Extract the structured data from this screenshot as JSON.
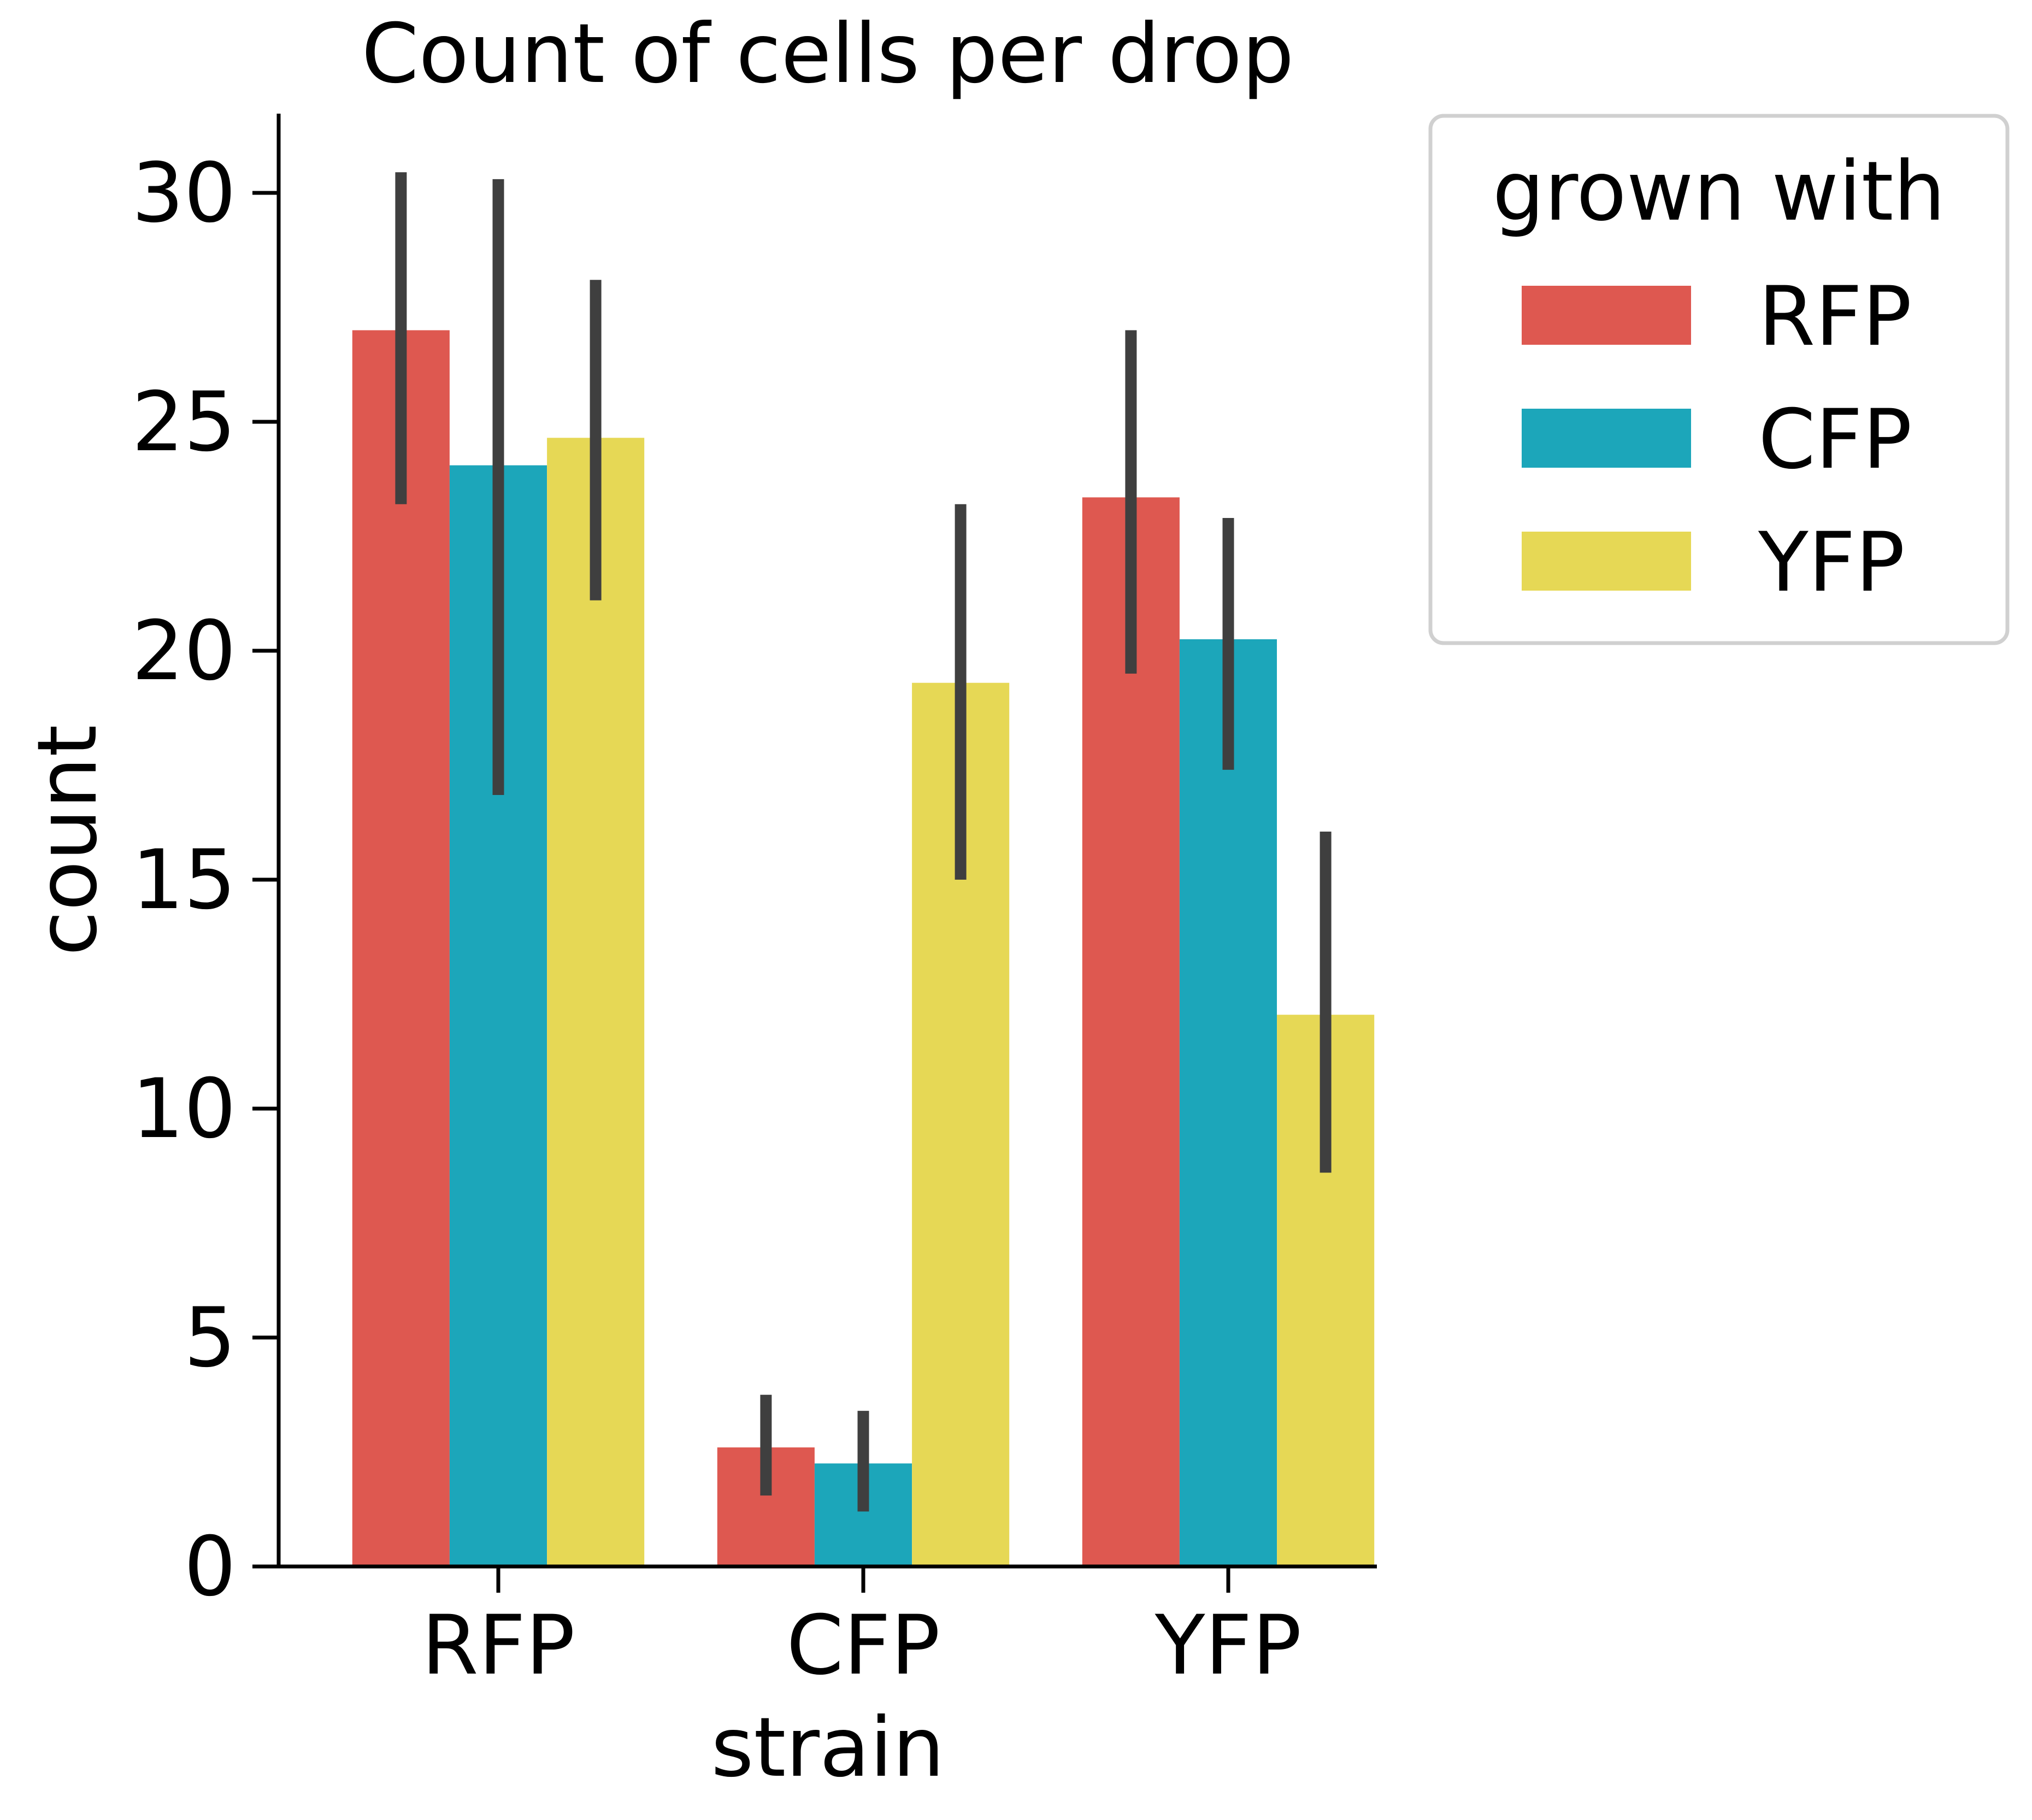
{
  "chart_data": {
    "type": "bar",
    "title": "Count of cells per drop",
    "xlabel": "strain",
    "ylabel": "count",
    "categories": [
      "RFP",
      "CFP",
      "YFP"
    ],
    "ylim": [
      0,
      31.8
    ],
    "yticks": [
      0,
      5,
      10,
      15,
      20,
      25,
      30
    ],
    "grid": false,
    "legend": {
      "title": "grown with",
      "placement": "outside-top-right"
    },
    "series": [
      {
        "name": "RFP",
        "color": "#de5850",
        "values": [
          27.0,
          2.6,
          23.35
        ],
        "ci_low": [
          23.2,
          1.55,
          19.5
        ],
        "ci_high": [
          30.45,
          3.75,
          27.0
        ]
      },
      {
        "name": "CFP",
        "color": "#1ca6ba",
        "values": [
          24.05,
          2.25,
          20.25
        ],
        "ci_low": [
          16.85,
          1.2,
          17.4
        ],
        "ci_high": [
          30.3,
          3.4,
          22.9
        ]
      },
      {
        "name": "YFP",
        "color": "#e6d855",
        "values": [
          24.65,
          19.3,
          12.05
        ],
        "ci_low": [
          21.1,
          15.0,
          8.6
        ],
        "ci_high": [
          28.1,
          23.2,
          16.05
        ]
      }
    ],
    "errorbar_color": "#3f3f3f"
  }
}
